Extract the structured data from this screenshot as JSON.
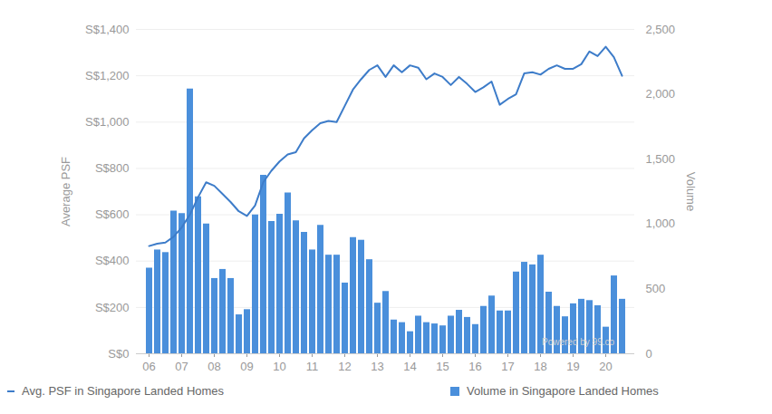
{
  "chart_data": {
    "type": "bar",
    "categories": [
      "06",
      null,
      null,
      null,
      "07",
      null,
      null,
      null,
      "08",
      null,
      null,
      null,
      "09",
      null,
      null,
      null,
      "10",
      null,
      null,
      null,
      "11",
      null,
      null,
      null,
      "12",
      null,
      null,
      null,
      "13",
      null,
      null,
      null,
      "14",
      null,
      null,
      null,
      "15",
      null,
      null,
      null,
      "16",
      null,
      null,
      null,
      "17",
      null,
      null,
      null,
      "18",
      null,
      null,
      null,
      "19",
      null,
      null,
      null,
      "20",
      null,
      null
    ],
    "series": [
      {
        "name": "Avg. PSF in Singapore Landed Homes",
        "type": "line",
        "color": "#3d7cc9",
        "values": [
          465,
          475,
          480,
          505,
          545,
          600,
          675,
          740,
          725,
          690,
          655,
          615,
          595,
          640,
          740,
          790,
          830,
          860,
          870,
          930,
          965,
          995,
          1005,
          1000,
          1070,
          1140,
          1185,
          1225,
          1245,
          1195,
          1245,
          1215,
          1245,
          1235,
          1185,
          1210,
          1195,
          1160,
          1195,
          1165,
          1130,
          1150,
          1175,
          1075,
          1100,
          1120,
          1210,
          1215,
          1205,
          1230,
          1245,
          1230,
          1230,
          1250,
          1305,
          1285,
          1325,
          1280,
          1200
        ]
      },
      {
        "name": "Volume in Singapore Landed Homes",
        "type": "bar",
        "axis": "y2",
        "color": "#4a8fdb",
        "values": [
          660,
          800,
          780,
          1100,
          1080,
          2040,
          1210,
          1000,
          580,
          650,
          580,
          300,
          340,
          1070,
          1375,
          1020,
          1075,
          1240,
          1025,
          935,
          800,
          990,
          760,
          760,
          545,
          895,
          875,
          725,
          390,
          480,
          260,
          240,
          170,
          290,
          240,
          230,
          215,
          290,
          335,
          280,
          225,
          365,
          445,
          330,
          330,
          630,
          705,
          685,
          760,
          475,
          365,
          285,
          385,
          420,
          410,
          370,
          205,
          600,
          420
        ]
      }
    ],
    "ylabel": "Average PSF",
    "y2label": "Volume",
    "ylim": [
      0,
      1400
    ],
    "yticks": [
      {
        "value": 0,
        "label": "S$0"
      },
      {
        "value": 200,
        "label": "S$200"
      },
      {
        "value": 400,
        "label": "S$400"
      },
      {
        "value": 600,
        "label": "S$600"
      },
      {
        "value": 800,
        "label": "S$800"
      },
      {
        "value": 1000,
        "label": "S$1,000"
      },
      {
        "value": 1200,
        "label": "S$1,200"
      },
      {
        "value": 1400,
        "label": "S$1,400"
      }
    ],
    "y2lim": [
      0,
      2500
    ],
    "y2ticks": [
      0,
      500,
      {
        "value": 1000,
        "label": "1,000"
      },
      {
        "value": 1500,
        "label": "1,500"
      },
      {
        "value": 2000,
        "label": "2,000"
      },
      {
        "value": 2500,
        "label": "2,500"
      }
    ],
    "grid": true,
    "legend": "bottom",
    "annotations": [
      "Powered by 99.co"
    ]
  }
}
